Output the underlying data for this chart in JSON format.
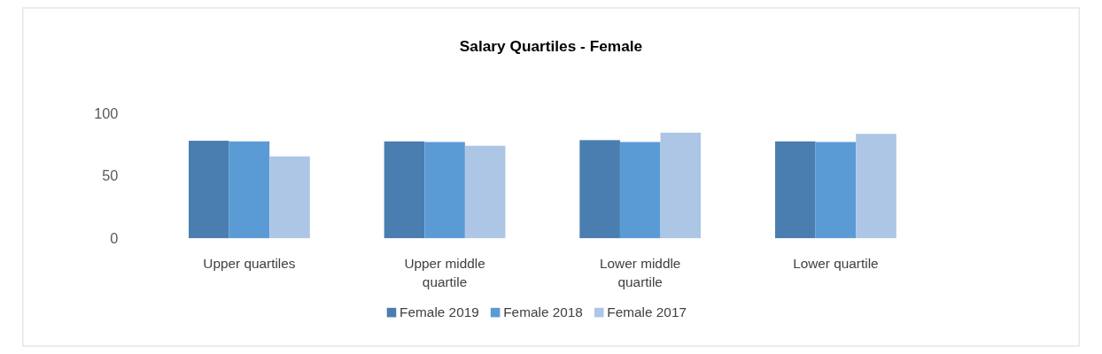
{
  "chart_data": {
    "type": "bar",
    "title": "Salary Quartiles - Female",
    "categories": [
      "Upper quartiles",
      "Upper middle quartile",
      "Lower middle quartile",
      "Lower quartile"
    ],
    "series": [
      {
        "name": "Female 2019",
        "color": "#4a7eb0",
        "values": [
          78,
          77.5,
          78.5,
          77.5
        ]
      },
      {
        "name": "Female 2018",
        "color": "#5b9bd5",
        "values": [
          77.5,
          77,
          77,
          77
        ]
      },
      {
        "name": "Female 2017",
        "color": "#adc6e5",
        "values": [
          65.5,
          74,
          84.5,
          83.5
        ]
      }
    ],
    "ylim": [
      0,
      100
    ],
    "yticks": [
      0,
      50,
      100
    ],
    "grid": false,
    "legend": "bottom"
  }
}
